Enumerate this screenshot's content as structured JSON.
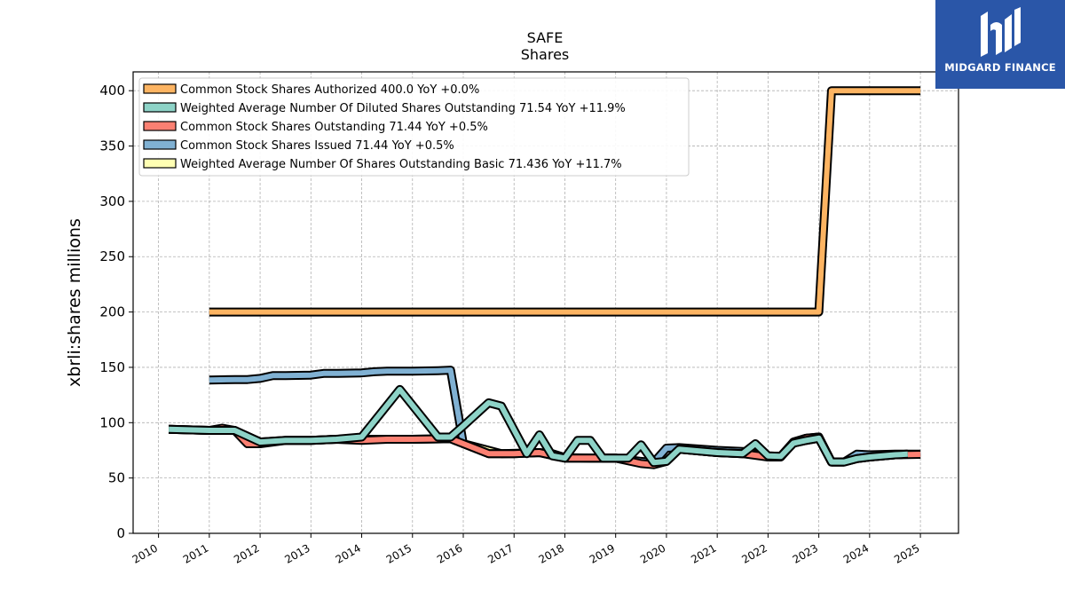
{
  "logo": {
    "text": "MIDGARD FINANCE",
    "color": "#2a56a8"
  },
  "chart_data": {
    "type": "line",
    "title": "SAFE",
    "subtitle": "Shares",
    "ylabel": "xbrli:shares millions",
    "ylim": [
      0,
      417
    ],
    "xlim": [
      2009.5,
      2025.75
    ],
    "yticks": [
      0,
      50,
      100,
      150,
      200,
      250,
      300,
      350,
      400
    ],
    "xticks": [
      2010,
      2011,
      2012,
      2013,
      2014,
      2015,
      2016,
      2017,
      2018,
      2019,
      2020,
      2021,
      2022,
      2023,
      2024,
      2025
    ],
    "grid": true,
    "legend_position": "top-left",
    "series": [
      {
        "name": "Weighted Average Number Of Shares Outstanding Basic  71.436 YoY +11.7%",
        "color": "#ffffb3",
        "x": [
          2010.2,
          2011.0,
          2011.5,
          2012.0,
          2012.5,
          2013.0,
          2013.5,
          2014.0,
          2014.5,
          2015.0,
          2015.75,
          2016.0,
          2016.5,
          2016.75,
          2017.5,
          2017.75,
          2018.0,
          2018.5,
          2019.0,
          2019.5,
          2019.75,
          2020.0,
          2020.25,
          2021.0,
          2021.5,
          2021.75,
          2022.0,
          2022.25,
          2022.5,
          2022.75,
          2023.0,
          2023.25,
          2023.5,
          2023.75,
          2024.0,
          2024.5,
          2024.75
        ],
        "y": [
          94.0,
          93.0,
          93.0,
          82.5,
          84.0,
          84.0,
          85.0,
          85.0,
          85.0,
          85.0,
          85.5,
          81.0,
          75.0,
          72.0,
          73.0,
          72.0,
          68.5,
          68.0,
          68.0,
          64.0,
          63.0,
          65.0,
          76.0,
          73.0,
          72.0,
          71.0,
          69.5,
          69.5,
          81.5,
          84.0,
          86.0,
          64.5,
          64.5,
          67.5,
          69.0,
          71.0,
          71.5
        ]
      },
      {
        "name": "Common Stock Shares Issued  71.44 YoY +0.5%",
        "color": "#80b1d3",
        "x": [
          2011.0,
          2011.5,
          2011.75,
          2012.0,
          2012.25,
          2012.5,
          2013.0,
          2013.25,
          2013.5,
          2014.0,
          2014.25,
          2014.5,
          2015.0,
          2015.5,
          2015.75,
          2016.0,
          2016.5,
          2017.0,
          2017.5,
          2018.0,
          2018.5,
          2019.0,
          2019.5,
          2019.75,
          2020.0,
          2020.25,
          2021.0,
          2021.5,
          2022.0,
          2022.25,
          2022.5,
          2022.75,
          2023.0,
          2023.25,
          2023.5,
          2023.75,
          2024.0,
          2024.5,
          2025.0
        ],
        "y": [
          138.5,
          139.0,
          139.0,
          140.0,
          142.5,
          142.5,
          143.0,
          144.5,
          144.5,
          145.0,
          146.0,
          146.5,
          146.5,
          147.0,
          147.5,
          81.0,
          72.0,
          72.0,
          73.0,
          68.0,
          68.0,
          68.0,
          65.0,
          64.0,
          77.0,
          77.5,
          75.0,
          74.0,
          70.0,
          69.5,
          82.5,
          86.0,
          87.0,
          64.5,
          64.5,
          71.5,
          71.0,
          71.5,
          71.5
        ]
      },
      {
        "name": "Common Stock Shares Outstanding  71.44 YoY +0.5%",
        "color": "#fb8072",
        "x": [
          2010.2,
          2011.0,
          2011.25,
          2011.5,
          2011.75,
          2012.0,
          2012.5,
          2013.0,
          2013.5,
          2014.0,
          2014.5,
          2015.0,
          2015.75,
          2016.0,
          2016.5,
          2017.0,
          2017.5,
          2018.0,
          2018.5,
          2019.0,
          2019.5,
          2019.75,
          2020.0,
          2020.25,
          2021.0,
          2021.5,
          2022.0,
          2022.25,
          2022.5,
          2022.75,
          2023.0,
          2023.25,
          2023.5,
          2023.75,
          2024.0,
          2024.5,
          2025.0
        ],
        "y": [
          94.0,
          93.0,
          95.0,
          93.0,
          81.0,
          81.0,
          84.0,
          84.0,
          85.0,
          84.0,
          85.0,
          85.0,
          85.5,
          81.0,
          72.0,
          72.0,
          73.0,
          68.0,
          68.0,
          68.0,
          63.0,
          62.0,
          65.0,
          76.0,
          73.0,
          72.0,
          69.0,
          69.0,
          82.0,
          86.0,
          87.0,
          64.5,
          64.5,
          67.5,
          69.0,
          71.0,
          71.4
        ]
      },
      {
        "name": "Weighted Average Number Of Diluted Shares Outstanding  71.54 YoY +11.9%",
        "color": "#8dd3c7",
        "x": [
          2010.2,
          2011.0,
          2011.5,
          2012.0,
          2012.5,
          2013.0,
          2013.5,
          2014.0,
          2014.75,
          2015.5,
          2015.75,
          2016.0,
          2016.5,
          2016.75,
          2017.25,
          2017.5,
          2017.75,
          2018.0,
          2018.25,
          2018.5,
          2018.75,
          2019.0,
          2019.25,
          2019.5,
          2019.75,
          2020.0,
          2020.25,
          2021.0,
          2021.5,
          2021.75,
          2022.0,
          2022.25,
          2022.5,
          2022.75,
          2023.0,
          2023.25,
          2023.5,
          2023.75,
          2024.0,
          2024.5,
          2024.75
        ],
        "y": [
          94.0,
          93.0,
          93.0,
          82.5,
          84.0,
          84.0,
          85.0,
          87.0,
          130.0,
          87.0,
          87.0,
          97.0,
          118.0,
          115.0,
          72.0,
          89.0,
          70.0,
          68.0,
          84.0,
          84.0,
          68.0,
          68.0,
          68.0,
          80.0,
          64.0,
          65.0,
          76.0,
          73.0,
          72.0,
          81.0,
          70.0,
          69.5,
          81.5,
          84.0,
          86.0,
          64.5,
          64.5,
          67.5,
          69.0,
          71.0,
          71.5
        ]
      },
      {
        "name": "Common Stock Shares Authorized  400.0 YoY +0.0%",
        "color": "#fdb462",
        "x": [
          2011.0,
          2023.0,
          2023.25,
          2025.0
        ],
        "y": [
          200.0,
          200.0,
          400.0,
          400.0
        ]
      }
    ]
  }
}
